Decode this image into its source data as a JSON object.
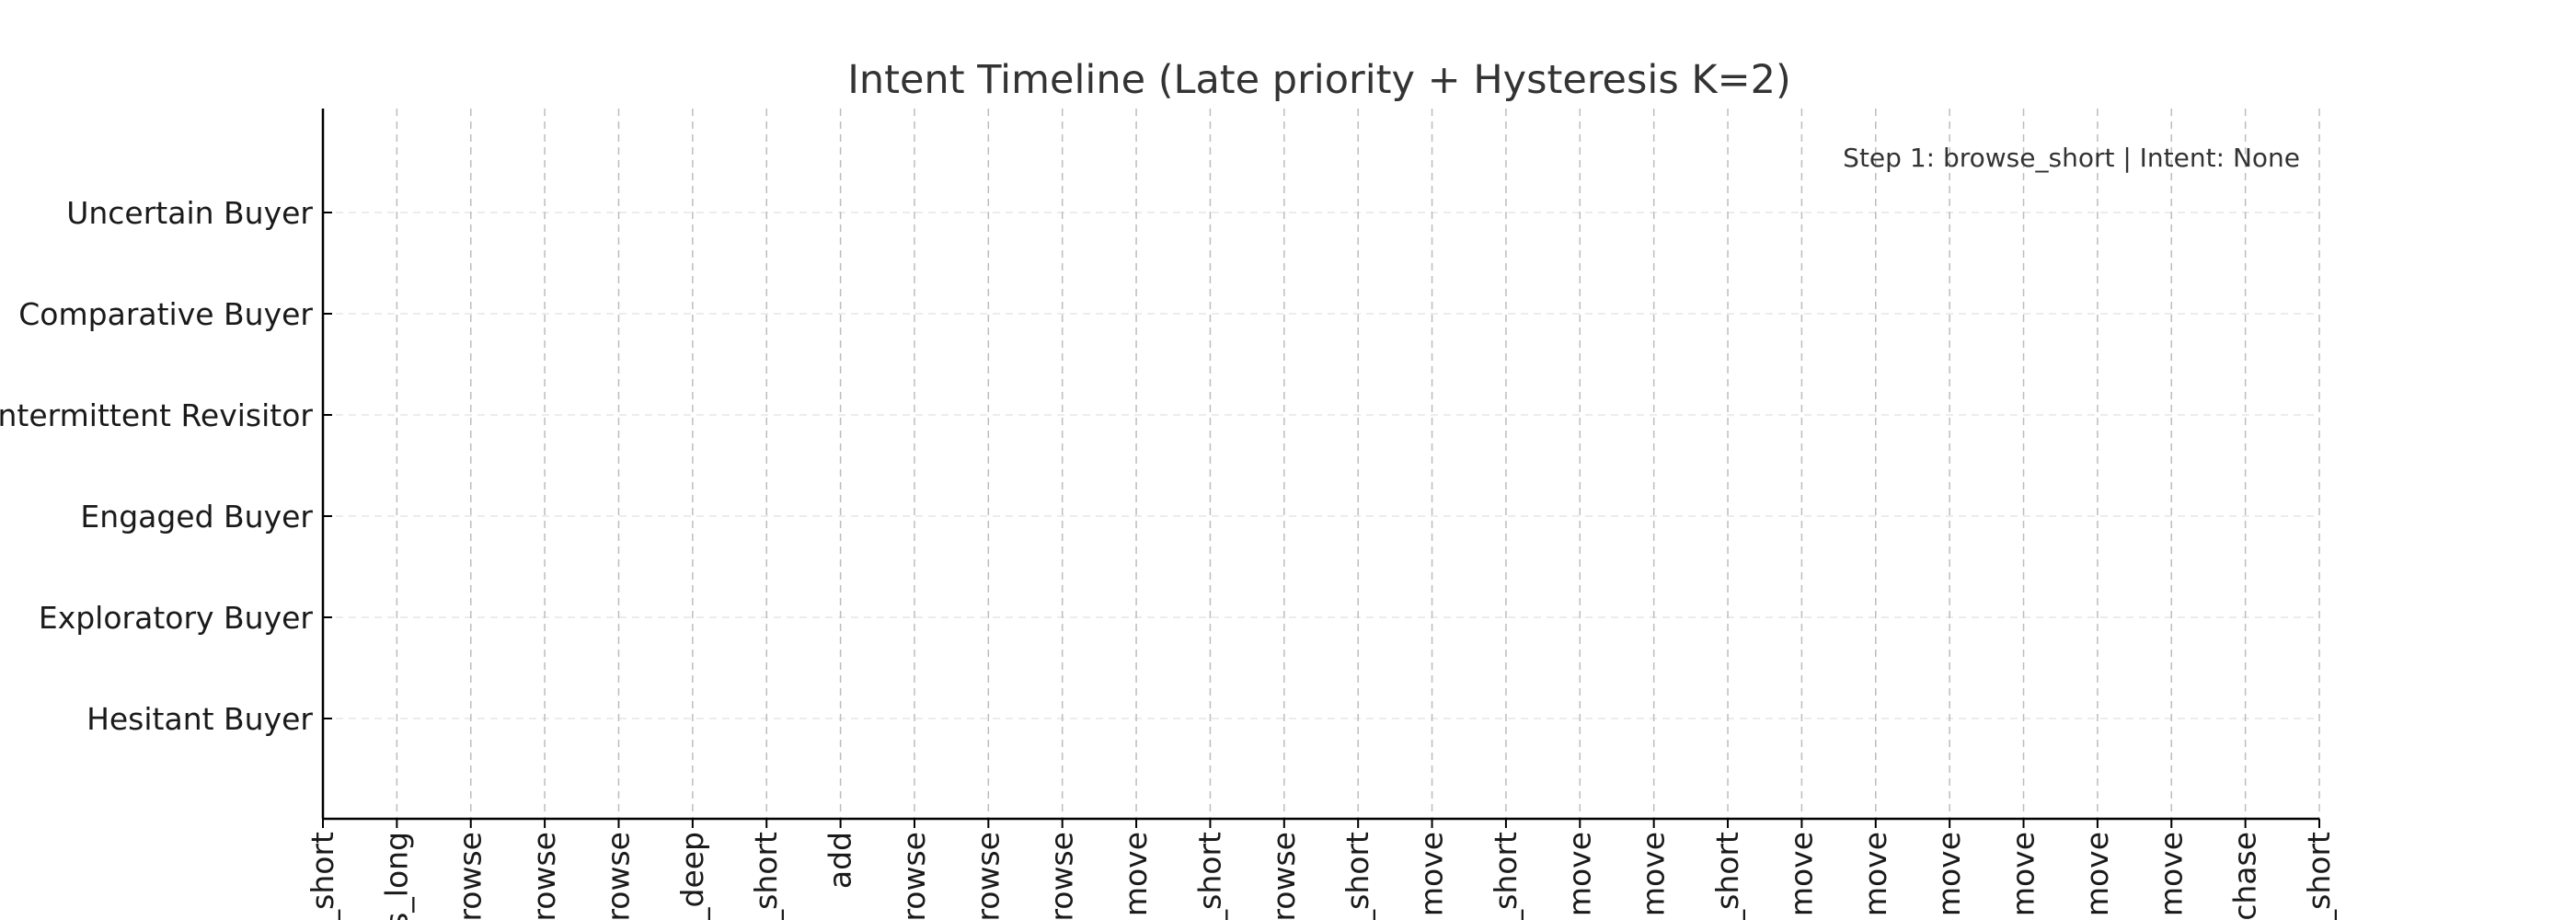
{
  "chart_data": {
    "type": "line",
    "title": "Intent Timeline (Late priority + Hysteresis K=2)",
    "annotation": "Step 1: browse_short | Intent: None",
    "xlabel": "",
    "ylabel": "",
    "y_categories": [
      "Uncertain Buyer",
      "Comparative Buyer",
      "Intermittent Revisitor",
      "Engaged Buyer",
      "Exploratory Buyer",
      "Hesitant Buyer"
    ],
    "x_tick_labels": [
      "_short",
      "s_long",
      "rowse",
      "rowse",
      "rowse",
      "_deep",
      "_short",
      "add",
      "rowse",
      "rowse",
      "rowse",
      "move",
      "_short",
      "rowse",
      "_short",
      "move",
      "_short",
      "move",
      "move",
      "_short",
      "move",
      "move",
      "move",
      "move",
      "move",
      "move",
      "chase",
      "_short"
    ],
    "series": [
      {
        "values": []
      }
    ],
    "grid": true,
    "legend": "none"
  }
}
